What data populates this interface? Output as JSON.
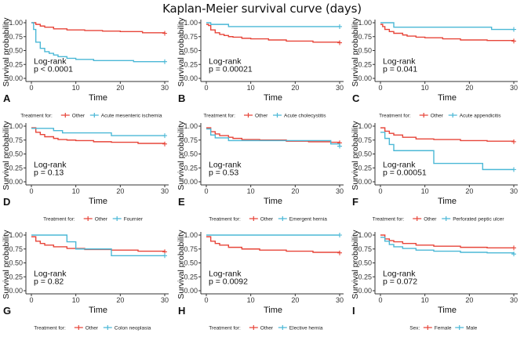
{
  "title": "Kaplan-Meier survival curve (days)",
  "colors": {
    "other": "#E7463A",
    "group": "#4BB8D6",
    "axis": "#333333"
  },
  "chart_data": [
    {
      "type": "line",
      "panel": "A",
      "title": "",
      "xlabel": "Time",
      "ylabel": "Survival probability",
      "xlim": [
        0,
        30
      ],
      "ylim": [
        0,
        1
      ],
      "xticks": [
        "0",
        "10",
        "20",
        "30"
      ],
      "yticks": [
        "0.00",
        "0.25",
        "0.50",
        "0.75",
        "1.00"
      ],
      "annotation": [
        "Log-rank",
        "p < 0.0001"
      ],
      "legend_title": "Treatment for:",
      "series": [
        {
          "name": "Other",
          "color_key": "other",
          "x": [
            0,
            1,
            2,
            3,
            5,
            8,
            12,
            16,
            20,
            25,
            30
          ],
          "y": [
            1.0,
            0.97,
            0.94,
            0.92,
            0.89,
            0.87,
            0.86,
            0.85,
            0.84,
            0.82,
            0.81
          ]
        },
        {
          "name": "Acute mesenteric ischemia",
          "color_key": "group",
          "x": [
            0,
            0.5,
            1,
            2,
            3,
            4,
            5,
            6,
            8,
            10,
            14,
            23,
            30
          ],
          "y": [
            1.0,
            0.88,
            0.65,
            0.54,
            0.48,
            0.45,
            0.42,
            0.39,
            0.36,
            0.34,
            0.32,
            0.3,
            0.3
          ]
        }
      ]
    },
    {
      "type": "line",
      "panel": "B",
      "title": "",
      "xlabel": "Time",
      "ylabel": "Survival probability",
      "xlim": [
        0,
        30
      ],
      "ylim": [
        0,
        1
      ],
      "xticks": [
        "0",
        "10",
        "20",
        "30"
      ],
      "yticks": [
        "0.00",
        "0.25",
        "0.50",
        "0.75",
        "1.00"
      ],
      "annotation": [
        "Log-rank",
        "p = 0.00021"
      ],
      "legend_title": "Treatment for:",
      "series": [
        {
          "name": "Other",
          "color_key": "other",
          "x": [
            0,
            0.5,
            1,
            2,
            3,
            4,
            5,
            6,
            8,
            10,
            14,
            18,
            24,
            30
          ],
          "y": [
            0.97,
            0.95,
            0.87,
            0.82,
            0.79,
            0.77,
            0.75,
            0.74,
            0.72,
            0.71,
            0.69,
            0.67,
            0.65,
            0.64
          ]
        },
        {
          "name": "Acute cholecystitis",
          "color_key": "group",
          "x": [
            0,
            1,
            5,
            30
          ],
          "y": [
            1.0,
            0.97,
            0.93,
            0.93
          ]
        }
      ]
    },
    {
      "type": "line",
      "panel": "C",
      "title": "",
      "xlabel": "Time",
      "ylabel": "Survival probability",
      "xlim": [
        0,
        30
      ],
      "ylim": [
        0,
        1
      ],
      "xticks": [
        "0",
        "10",
        "20",
        "30"
      ],
      "yticks": [
        "0.00",
        "0.25",
        "0.50",
        "0.75",
        "1.00"
      ],
      "annotation": [
        "Log-rank",
        "p = 0.041"
      ],
      "legend_title": "Treatment for:",
      "series": [
        {
          "name": "Other",
          "color_key": "other",
          "x": [
            0,
            0.5,
            1,
            2,
            3,
            5,
            6,
            8,
            10,
            14,
            18,
            24,
            30
          ],
          "y": [
            0.97,
            0.93,
            0.88,
            0.84,
            0.81,
            0.78,
            0.76,
            0.74,
            0.73,
            0.71,
            0.69,
            0.68,
            0.67
          ]
        },
        {
          "name": "Acute appendicitis",
          "color_key": "group",
          "x": [
            0,
            3,
            25,
            30
          ],
          "y": [
            1.0,
            0.92,
            0.88,
            0.88
          ]
        }
      ]
    },
    {
      "type": "line",
      "panel": "D",
      "title": "",
      "xlabel": "Time",
      "ylabel": "Survival probability",
      "xlim": [
        0,
        30
      ],
      "ylim": [
        0,
        1
      ],
      "xticks": [
        "0",
        "10",
        "20",
        "30"
      ],
      "yticks": [
        "0.00",
        "0.25",
        "0.50",
        "0.75",
        "1.00"
      ],
      "annotation": [
        "Log-rank",
        "p = 0.13"
      ],
      "legend_title": "Treatment for:",
      "series": [
        {
          "name": "Other",
          "color_key": "other",
          "x": [
            0,
            1,
            2,
            3,
            5,
            6,
            8,
            10,
            14,
            18,
            24,
            30
          ],
          "y": [
            0.97,
            0.89,
            0.85,
            0.81,
            0.78,
            0.76,
            0.75,
            0.74,
            0.72,
            0.71,
            0.69,
            0.68
          ]
        },
        {
          "name": "Fournier",
          "color_key": "group",
          "x": [
            0,
            5,
            7,
            18,
            30
          ],
          "y": [
            0.96,
            0.92,
            0.88,
            0.83,
            0.83
          ]
        }
      ]
    },
    {
      "type": "line",
      "panel": "E",
      "title": "",
      "xlabel": "Time",
      "ylabel": "Survival probability",
      "xlim": [
        0,
        30
      ],
      "ylim": [
        0,
        1
      ],
      "xticks": [
        "0",
        "10",
        "20",
        "30"
      ],
      "yticks": [
        "0.00",
        "0.25",
        "0.50",
        "0.75",
        "1.00"
      ],
      "annotation": [
        "Log-rank",
        "p = 0.53"
      ],
      "legend_title": "Treatment for:",
      "series": [
        {
          "name": "Other",
          "color_key": "other",
          "x": [
            0,
            1,
            2,
            3,
            5,
            6,
            8,
            12,
            18,
            23,
            28,
            30
          ],
          "y": [
            0.97,
            0.9,
            0.86,
            0.83,
            0.8,
            0.78,
            0.76,
            0.75,
            0.73,
            0.72,
            0.71,
            0.7
          ]
        },
        {
          "name": "Emergent hernia",
          "color_key": "group",
          "x": [
            0,
            1,
            2,
            5,
            28,
            30
          ],
          "y": [
            0.95,
            0.84,
            0.79,
            0.74,
            0.68,
            0.64
          ]
        }
      ]
    },
    {
      "type": "line",
      "panel": "F",
      "title": "",
      "xlabel": "Time",
      "ylabel": "Survival probability",
      "xlim": [
        0,
        30
      ],
      "ylim": [
        0,
        1
      ],
      "xticks": [
        "0",
        "10",
        "20",
        "30"
      ],
      "yticks": [
        "0.00",
        "0.25",
        "0.50",
        "0.75",
        "1.00"
      ],
      "annotation": [
        "Log-rank",
        "p = 0.00051"
      ],
      "legend_title": "Treatment for:",
      "series": [
        {
          "name": "Other",
          "color_key": "other",
          "x": [
            0,
            1,
            2,
            3,
            5,
            8,
            12,
            18,
            24,
            30
          ],
          "y": [
            0.97,
            0.91,
            0.87,
            0.84,
            0.8,
            0.77,
            0.76,
            0.74,
            0.73,
            0.72
          ]
        },
        {
          "name": "Perforated peptic ulcer",
          "color_key": "group",
          "x": [
            0,
            1,
            2,
            3,
            12,
            23,
            30
          ],
          "y": [
            0.89,
            0.78,
            0.67,
            0.56,
            0.33,
            0.22,
            0.22
          ]
        }
      ]
    },
    {
      "type": "line",
      "panel": "G",
      "title": "",
      "xlabel": "Time",
      "ylabel": "Survival probability",
      "xlim": [
        0,
        30
      ],
      "ylim": [
        0,
        1
      ],
      "xticks": [
        "0",
        "10",
        "20",
        "30"
      ],
      "yticks": [
        "0.00",
        "0.25",
        "0.50",
        "0.75",
        "1.00"
      ],
      "annotation": [
        "Log-rank",
        "p = 0.82"
      ],
      "legend_title": "Treatment for:",
      "series": [
        {
          "name": "Other",
          "color_key": "other",
          "x": [
            0,
            1,
            2,
            3,
            5,
            8,
            12,
            18,
            24,
            30
          ],
          "y": [
            0.97,
            0.89,
            0.85,
            0.82,
            0.79,
            0.76,
            0.74,
            0.73,
            0.71,
            0.7
          ]
        },
        {
          "name": "Colon neoplasia",
          "color_key": "group",
          "x": [
            0,
            8,
            10,
            18,
            30
          ],
          "y": [
            1.0,
            0.88,
            0.75,
            0.63,
            0.63
          ]
        }
      ]
    },
    {
      "type": "line",
      "panel": "H",
      "title": "",
      "xlabel": "Time",
      "ylabel": "Survival probability",
      "xlim": [
        0,
        30
      ],
      "ylim": [
        0,
        1
      ],
      "xticks": [
        "0",
        "10",
        "20",
        "30"
      ],
      "yticks": [
        "0.00",
        "0.25",
        "0.50",
        "0.75",
        "1.00"
      ],
      "annotation": [
        "Log-rank",
        "p = 0.0092"
      ],
      "legend_title": "Treatment for:",
      "series": [
        {
          "name": "Other",
          "color_key": "other",
          "x": [
            0,
            1,
            2,
            3,
            5,
            8,
            12,
            18,
            24,
            30
          ],
          "y": [
            0.97,
            0.89,
            0.85,
            0.82,
            0.78,
            0.75,
            0.73,
            0.71,
            0.69,
            0.68
          ]
        },
        {
          "name": "Elective hernia",
          "color_key": "group",
          "x": [
            0,
            30
          ],
          "y": [
            1.0,
            1.0
          ]
        }
      ]
    },
    {
      "type": "line",
      "panel": "I",
      "title": "",
      "xlabel": "Time",
      "ylabel": "Survival probability",
      "xlim": [
        0,
        30
      ],
      "ylim": [
        0,
        1
      ],
      "xticks": [
        "0",
        "10",
        "20",
        "30"
      ],
      "yticks": [
        "0.00",
        "0.25",
        "0.50",
        "0.75",
        "1.00"
      ],
      "annotation": [
        "Log-rank",
        "p = 0.072"
      ],
      "legend_title": "Sex:",
      "series": [
        {
          "name": "Female",
          "color_key": "other",
          "x": [
            0,
            1,
            2,
            3,
            5,
            8,
            12,
            18,
            24,
            30
          ],
          "y": [
            1.0,
            0.93,
            0.9,
            0.88,
            0.85,
            0.82,
            0.8,
            0.78,
            0.77,
            0.77
          ]
        },
        {
          "name": "Male",
          "color_key": "group",
          "x": [
            0,
            1,
            2,
            3,
            5,
            8,
            12,
            18,
            24,
            30
          ],
          "y": [
            0.96,
            0.89,
            0.83,
            0.79,
            0.76,
            0.73,
            0.71,
            0.69,
            0.68,
            0.66
          ]
        }
      ]
    }
  ]
}
